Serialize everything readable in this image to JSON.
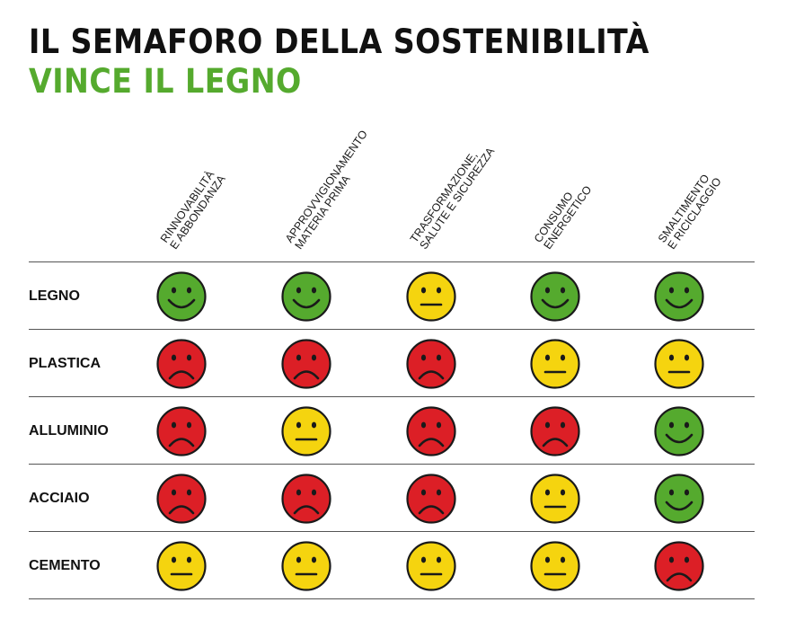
{
  "title": "IL SEMAFORO DELLA SOSTENIBILITÀ",
  "subtitle": "VINCE IL LEGNO",
  "colors": {
    "accent": "#55aa2e",
    "good": "#55aa2e",
    "neutral": "#f5d40f",
    "bad": "#dc1f26",
    "outline": "#1a1a1a"
  },
  "columns": [
    {
      "line1": "RINNOVABILITÀ",
      "line2": "E ABBONDANZA"
    },
    {
      "line1": "APPROVVIGIONAMENTO",
      "line2": "MATERIA PRIMA"
    },
    {
      "line1": "TRASFORMAZIONE,",
      "line2": "SALUTE E SICUREZZA"
    },
    {
      "line1": "CONSUMO",
      "line2": "ENERGETICO"
    },
    {
      "line1": "SMALTIMENTO",
      "line2": "E RICICLAGGIO"
    }
  ],
  "rows": [
    {
      "label": "LEGNO",
      "ratings": [
        "good",
        "good",
        "neutral",
        "good",
        "good"
      ]
    },
    {
      "label": "PLASTICA",
      "ratings": [
        "bad",
        "bad",
        "bad",
        "neutral",
        "neutral"
      ]
    },
    {
      "label": "ALLUMINIO",
      "ratings": [
        "bad",
        "neutral",
        "bad",
        "bad",
        "good"
      ]
    },
    {
      "label": "ACCIAIO",
      "ratings": [
        "bad",
        "bad",
        "bad",
        "neutral",
        "good"
      ]
    },
    {
      "label": "CEMENTO",
      "ratings": [
        "neutral",
        "neutral",
        "neutral",
        "neutral",
        "bad"
      ]
    }
  ]
}
